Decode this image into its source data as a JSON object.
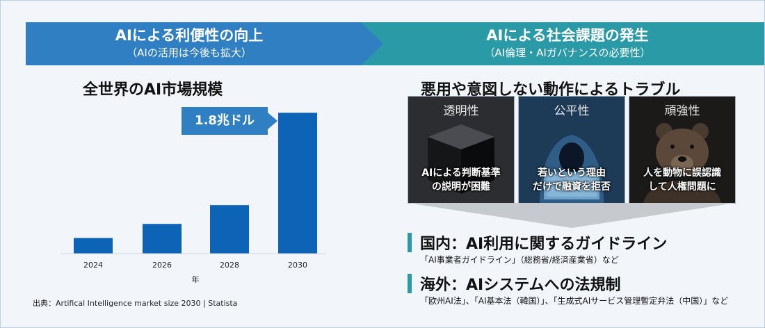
{
  "banner_left": {
    "title": "AIによる利便性の向上",
    "subtitle": "（AIの活用は今後も拡大）"
  },
  "banner_right": {
    "title": "AIによる社会課題の発生",
    "subtitle": "（AI倫理・AIガバナンスの必要性）"
  },
  "left_heading": "全世界のAI市場規模",
  "right_heading": "悪用や意図しない動作によるトラブル",
  "callout": "1.8兆ドル",
  "chart_data": {
    "type": "bar",
    "title": "全世界のAI市場規模",
    "categories": [
      "2024",
      "2026",
      "2028",
      "2030"
    ],
    "values": [
      0.2,
      0.38,
      0.62,
      1.8
    ],
    "value_unit": "兆ドル",
    "annotated_value": {
      "category": "2030",
      "label": "1.8兆ドル"
    },
    "xlabel": "年",
    "ylabel": "",
    "ylim": [
      0,
      1.9
    ],
    "grid": false,
    "bar_color": "#0d63b5"
  },
  "source": "出典：Artifical Intelligence market size 2030 | Statista",
  "cards": [
    {
      "title": "透明性",
      "body_line1": "AIによる判断基準",
      "body_line2": "の説明が困難",
      "icon": "black-box-icon"
    },
    {
      "title": "公平性",
      "body_line1": "若いという理由",
      "body_line2": "だけで融資を拒否",
      "icon": "hooded-person-laptop-icon"
    },
    {
      "title": "頑強性",
      "body_line1": "人を動物に誤認識",
      "body_line2": "して人権問題に",
      "icon": "bear-icon"
    }
  ],
  "items": [
    {
      "title": "国内：AI利用に関するガイドライン",
      "note": "「AI事業者ガイドライン」（総務省/経済産業省）など"
    },
    {
      "title": "海外：AIシステムへの法規制",
      "note": "「欧州AI法」、「AI基本法（韓国）」、「生成式AIサービス管理暫定弁法（中国）」など"
    }
  ],
  "colors": {
    "blue": "#2f7fc2",
    "teal": "#2a9aa7",
    "bar": "#0d63b5",
    "background": "#f2f6fb"
  }
}
